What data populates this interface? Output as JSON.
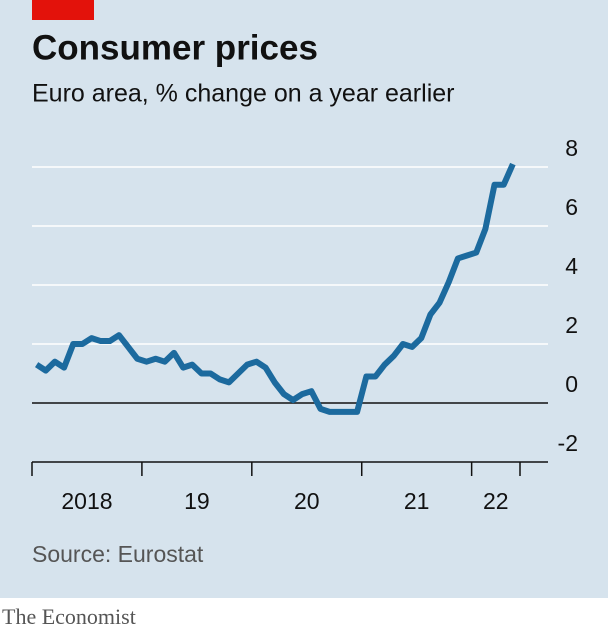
{
  "chart_data": {
    "type": "line",
    "title": "Consumer prices",
    "subtitle": "Euro area, % change on a year earlier",
    "source": "Source: Eurostat",
    "brand": "The Economist",
    "x": [
      2018.042,
      2018.125,
      2018.208,
      2018.292,
      2018.375,
      2018.458,
      2018.542,
      2018.625,
      2018.708,
      2018.792,
      2018.875,
      2018.958,
      2019.042,
      2019.125,
      2019.208,
      2019.292,
      2019.375,
      2019.458,
      2019.542,
      2019.625,
      2019.708,
      2019.792,
      2019.875,
      2019.958,
      2020.042,
      2020.125,
      2020.208,
      2020.292,
      2020.375,
      2020.458,
      2020.542,
      2020.625,
      2020.708,
      2020.792,
      2020.875,
      2020.958,
      2021.042,
      2021.125,
      2021.208,
      2021.292,
      2021.375,
      2021.458,
      2021.542,
      2021.625,
      2021.708,
      2021.792,
      2021.875,
      2021.958,
      2022.042,
      2022.125,
      2022.208,
      2022.292,
      2022.375
    ],
    "series": [
      {
        "color": "#1c6a9e",
        "values": [
          1.3,
          1.1,
          1.4,
          1.2,
          2.0,
          2.0,
          2.2,
          2.1,
          2.1,
          2.3,
          1.9,
          1.5,
          1.4,
          1.5,
          1.4,
          1.7,
          1.2,
          1.3,
          1.0,
          1.0,
          0.8,
          0.7,
          1.0,
          1.3,
          1.4,
          1.2,
          0.7,
          0.3,
          0.1,
          0.3,
          0.4,
          -0.2,
          -0.3,
          -0.3,
          -0.3,
          -0.3,
          0.9,
          0.9,
          1.3,
          1.6,
          2.0,
          1.9,
          2.2,
          3.0,
          3.4,
          4.1,
          4.9,
          5.0,
          5.1,
          5.9,
          7.4,
          7.4,
          8.1
        ]
      }
    ],
    "xlim": [
      2018,
      2022.44
    ],
    "xticks": [
      2018,
      2019,
      2020,
      2021,
      2022
    ],
    "xlabels": [
      {
        "value": 2018.5,
        "label": "2018"
      },
      {
        "value": 2019.5,
        "label": "19"
      },
      {
        "value": 2020.5,
        "label": "20"
      },
      {
        "value": 2021.5,
        "label": "21"
      },
      {
        "value": 2022.22,
        "label": "22"
      }
    ],
    "ylim": [
      -2,
      8
    ],
    "yticks": [
      -2,
      0,
      2,
      4,
      6,
      8
    ],
    "grid": true
  }
}
